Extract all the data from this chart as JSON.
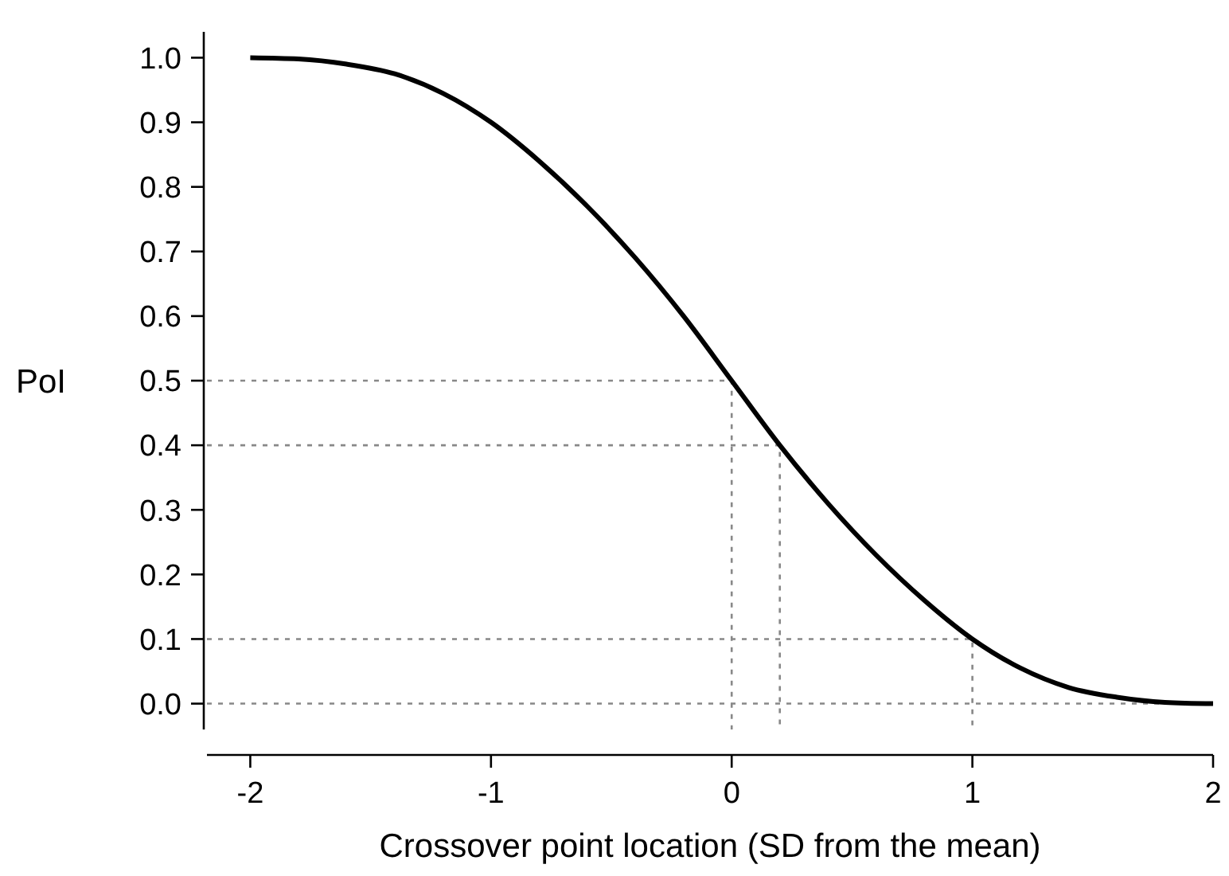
{
  "chart_data": {
    "type": "line",
    "xlabel": "Crossover point location (SD from the mean)",
    "ylabel": "PoI",
    "xlim": [
      -2.18,
      2
    ],
    "ylim": [
      -0.04,
      1.04
    ],
    "xticks": [
      -2,
      -1,
      0,
      1,
      2
    ],
    "yticks": [
      {
        "value": 0,
        "label": "0.0"
      },
      {
        "value": 0.1,
        "label": "0.1"
      },
      {
        "value": 0.2,
        "label": "0.2"
      },
      {
        "value": 0.3,
        "label": "0.3"
      },
      {
        "value": 0.4,
        "label": "0.4"
      },
      {
        "value": 0.5,
        "label": "0.5"
      },
      {
        "value": 0.6,
        "label": "0.6"
      },
      {
        "value": 0.7,
        "label": "0.7"
      },
      {
        "value": 0.8,
        "label": "0.8"
      },
      {
        "value": 0.9,
        "label": "0.9"
      },
      {
        "value": 1,
        "label": "1.0"
      }
    ],
    "grid": false,
    "marker": "none",
    "series": [
      {
        "color": "#888888",
        "line_style": "dotted",
        "x": [
          -2.18,
          0,
          0
        ],
        "values": [
          0.5,
          0.5,
          -0.04
        ]
      },
      {
        "color": "#888888",
        "line_style": "dotted",
        "x": [
          -2.18,
          0.2,
          0.2
        ],
        "values": [
          0.4,
          0.4,
          -0.04
        ]
      },
      {
        "color": "#888888",
        "line_style": "dotted",
        "x": [
          -2.18,
          1,
          1
        ],
        "values": [
          0.1,
          0.1,
          -0.04
        ]
      },
      {
        "color": "#888888",
        "line_style": "dotted",
        "x": [
          -2.18,
          2
        ],
        "values": [
          0,
          0
        ]
      },
      {
        "color": "#000000",
        "line_style": "solid",
        "x": [
          -2,
          -1.8,
          -1.6,
          -1.4,
          -1.2,
          -1,
          -0.8,
          -0.6,
          -0.4,
          -0.2,
          0,
          0.2,
          0.4,
          0.6,
          0.8,
          1,
          1.2,
          1.4,
          1.6,
          1.8,
          2
        ],
        "values": [
          1,
          0.998,
          0.99,
          0.975,
          0.945,
          0.9,
          0.84,
          0.77,
          0.69,
          0.6,
          0.5,
          0.4,
          0.31,
          0.23,
          0.16,
          0.1,
          0.055,
          0.025,
          0.01,
          0.002,
          0
        ]
      }
    ]
  }
}
